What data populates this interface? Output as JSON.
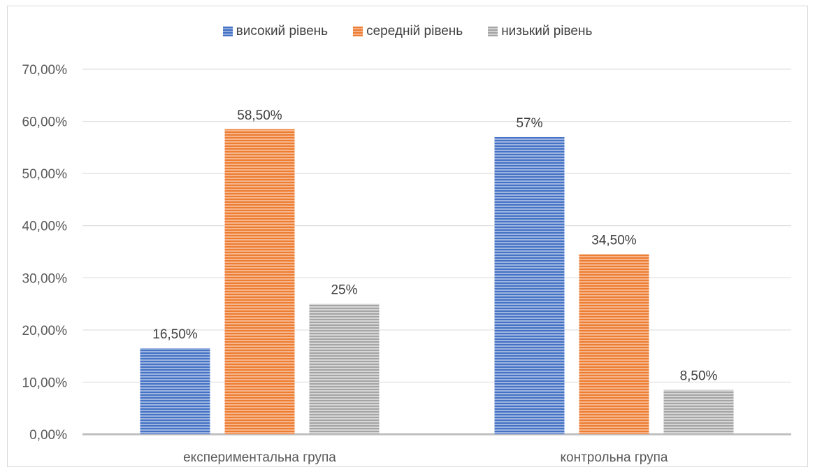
{
  "chart_data": {
    "type": "bar",
    "categories": [
      "експериментальна група",
      "контрольна група"
    ],
    "series": [
      {
        "name": "високий рівень",
        "color": "#4472c4",
        "values": [
          16.5,
          57
        ],
        "labels": [
          "16,50%",
          "57%"
        ]
      },
      {
        "name": "середній рівень",
        "color": "#ed7d31",
        "values": [
          58.5,
          34.5
        ],
        "labels": [
          "58,50%",
          "34,50%"
        ]
      },
      {
        "name": "низький рівень",
        "color": "#a5a5a5",
        "values": [
          25,
          8.5
        ],
        "labels": [
          "25%",
          "8,50%"
        ]
      }
    ],
    "ylim": [
      0,
      70
    ],
    "yticks": [
      0,
      10,
      20,
      30,
      40,
      50,
      60,
      70
    ],
    "ytick_labels": [
      "0,00%",
      "10,00%",
      "20,00%",
      "30,00%",
      "40,00%",
      "50,00%",
      "60,00%",
      "70,00%"
    ],
    "grid": true,
    "legend_position": "top-center",
    "bar_pattern": "horizontal-stripes"
  }
}
